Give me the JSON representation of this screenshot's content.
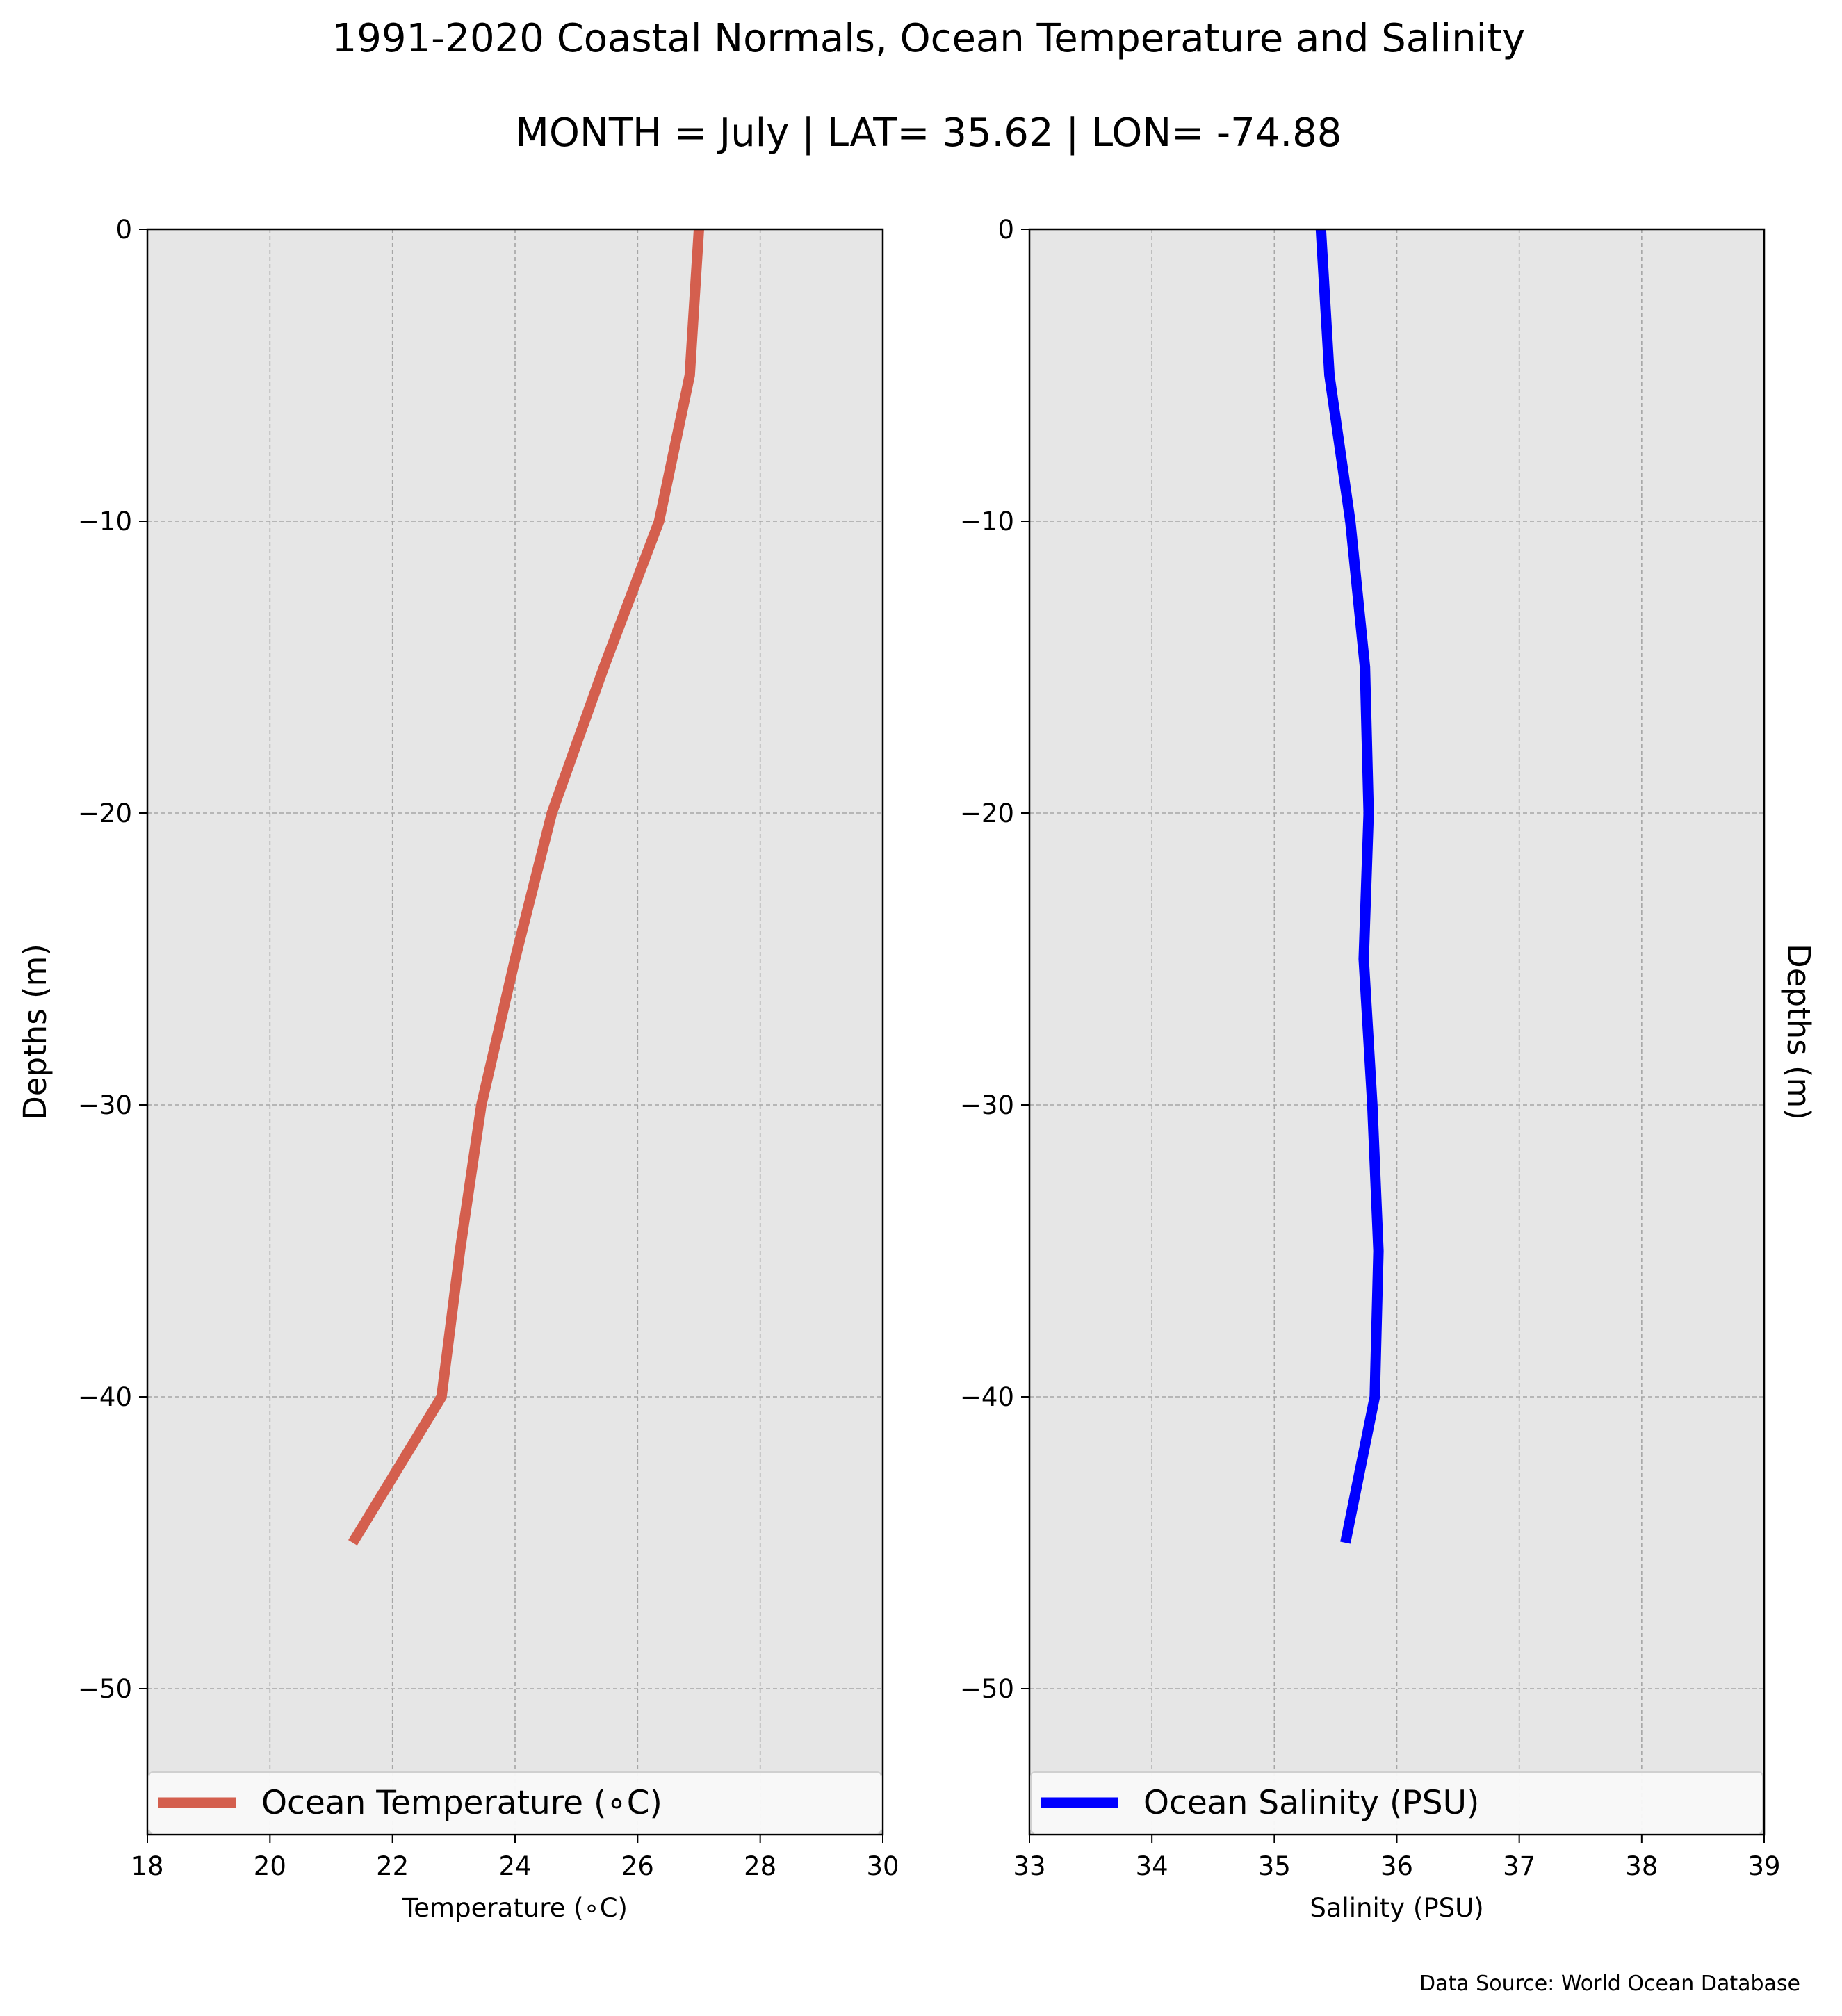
{
  "figure": {
    "title": "1991-2020 Coastal Normals, Ocean Temperature and Salinity",
    "subtitle": "MONTH = July | LAT= 35.62 | LON= -74.88",
    "source": "Data Source: World Ocean Database",
    "background": "#ffffff",
    "axes_background": "#e6e6e6"
  },
  "chart_data": [
    {
      "type": "line",
      "xlabel": "Temperature ($^\\circ$C)",
      "xlabel_display": "Temperature (∘C)",
      "ylabel": "Depths (m)",
      "ylabel_side": "left",
      "xlim": [
        18,
        30
      ],
      "ylim": [
        -55,
        0
      ],
      "xticks": [
        18,
        20,
        22,
        24,
        26,
        28,
        30
      ],
      "yticks": [
        0,
        -10,
        -20,
        -30,
        -40,
        -50
      ],
      "ytick_labels": [
        "0",
        "−10",
        "−20",
        "−30",
        "−40",
        "−50"
      ],
      "grid": true,
      "legend_position": "bottom",
      "series": [
        {
          "name": "Ocean Temperature ($^\\circ$C)",
          "name_display": "Ocean Temperature (∘C)",
          "color": "#d45f4e",
          "x": [
            27.0,
            26.85,
            26.35,
            25.45,
            24.6,
            24.0,
            23.45,
            23.1,
            22.8,
            21.35
          ],
          "y": [
            0,
            -5,
            -10,
            -15,
            -20,
            -25,
            -30,
            -35,
            -40,
            -45
          ]
        }
      ]
    },
    {
      "type": "line",
      "xlabel": "Salinity (PSU)",
      "ylabel": "Depths (m)",
      "ylabel_side": "right",
      "xlim": [
        33,
        39
      ],
      "ylim": [
        -55,
        0
      ],
      "xticks": [
        33,
        34,
        35,
        36,
        37,
        38,
        39
      ],
      "yticks": [
        0,
        -10,
        -20,
        -30,
        -40,
        -50
      ],
      "ytick_labels": [
        "0",
        "−10",
        "−20",
        "−30",
        "−40",
        "−50"
      ],
      "grid": true,
      "legend_position": "bottom",
      "series": [
        {
          "name": "Ocean Salinity (PSU)",
          "color": "#0000ff",
          "x": [
            35.38,
            35.45,
            35.62,
            35.74,
            35.77,
            35.73,
            35.8,
            35.85,
            35.82,
            35.58
          ],
          "y": [
            0,
            -5,
            -10,
            -15,
            -20,
            -25,
            -30,
            -35,
            -40,
            -45
          ]
        }
      ]
    }
  ]
}
